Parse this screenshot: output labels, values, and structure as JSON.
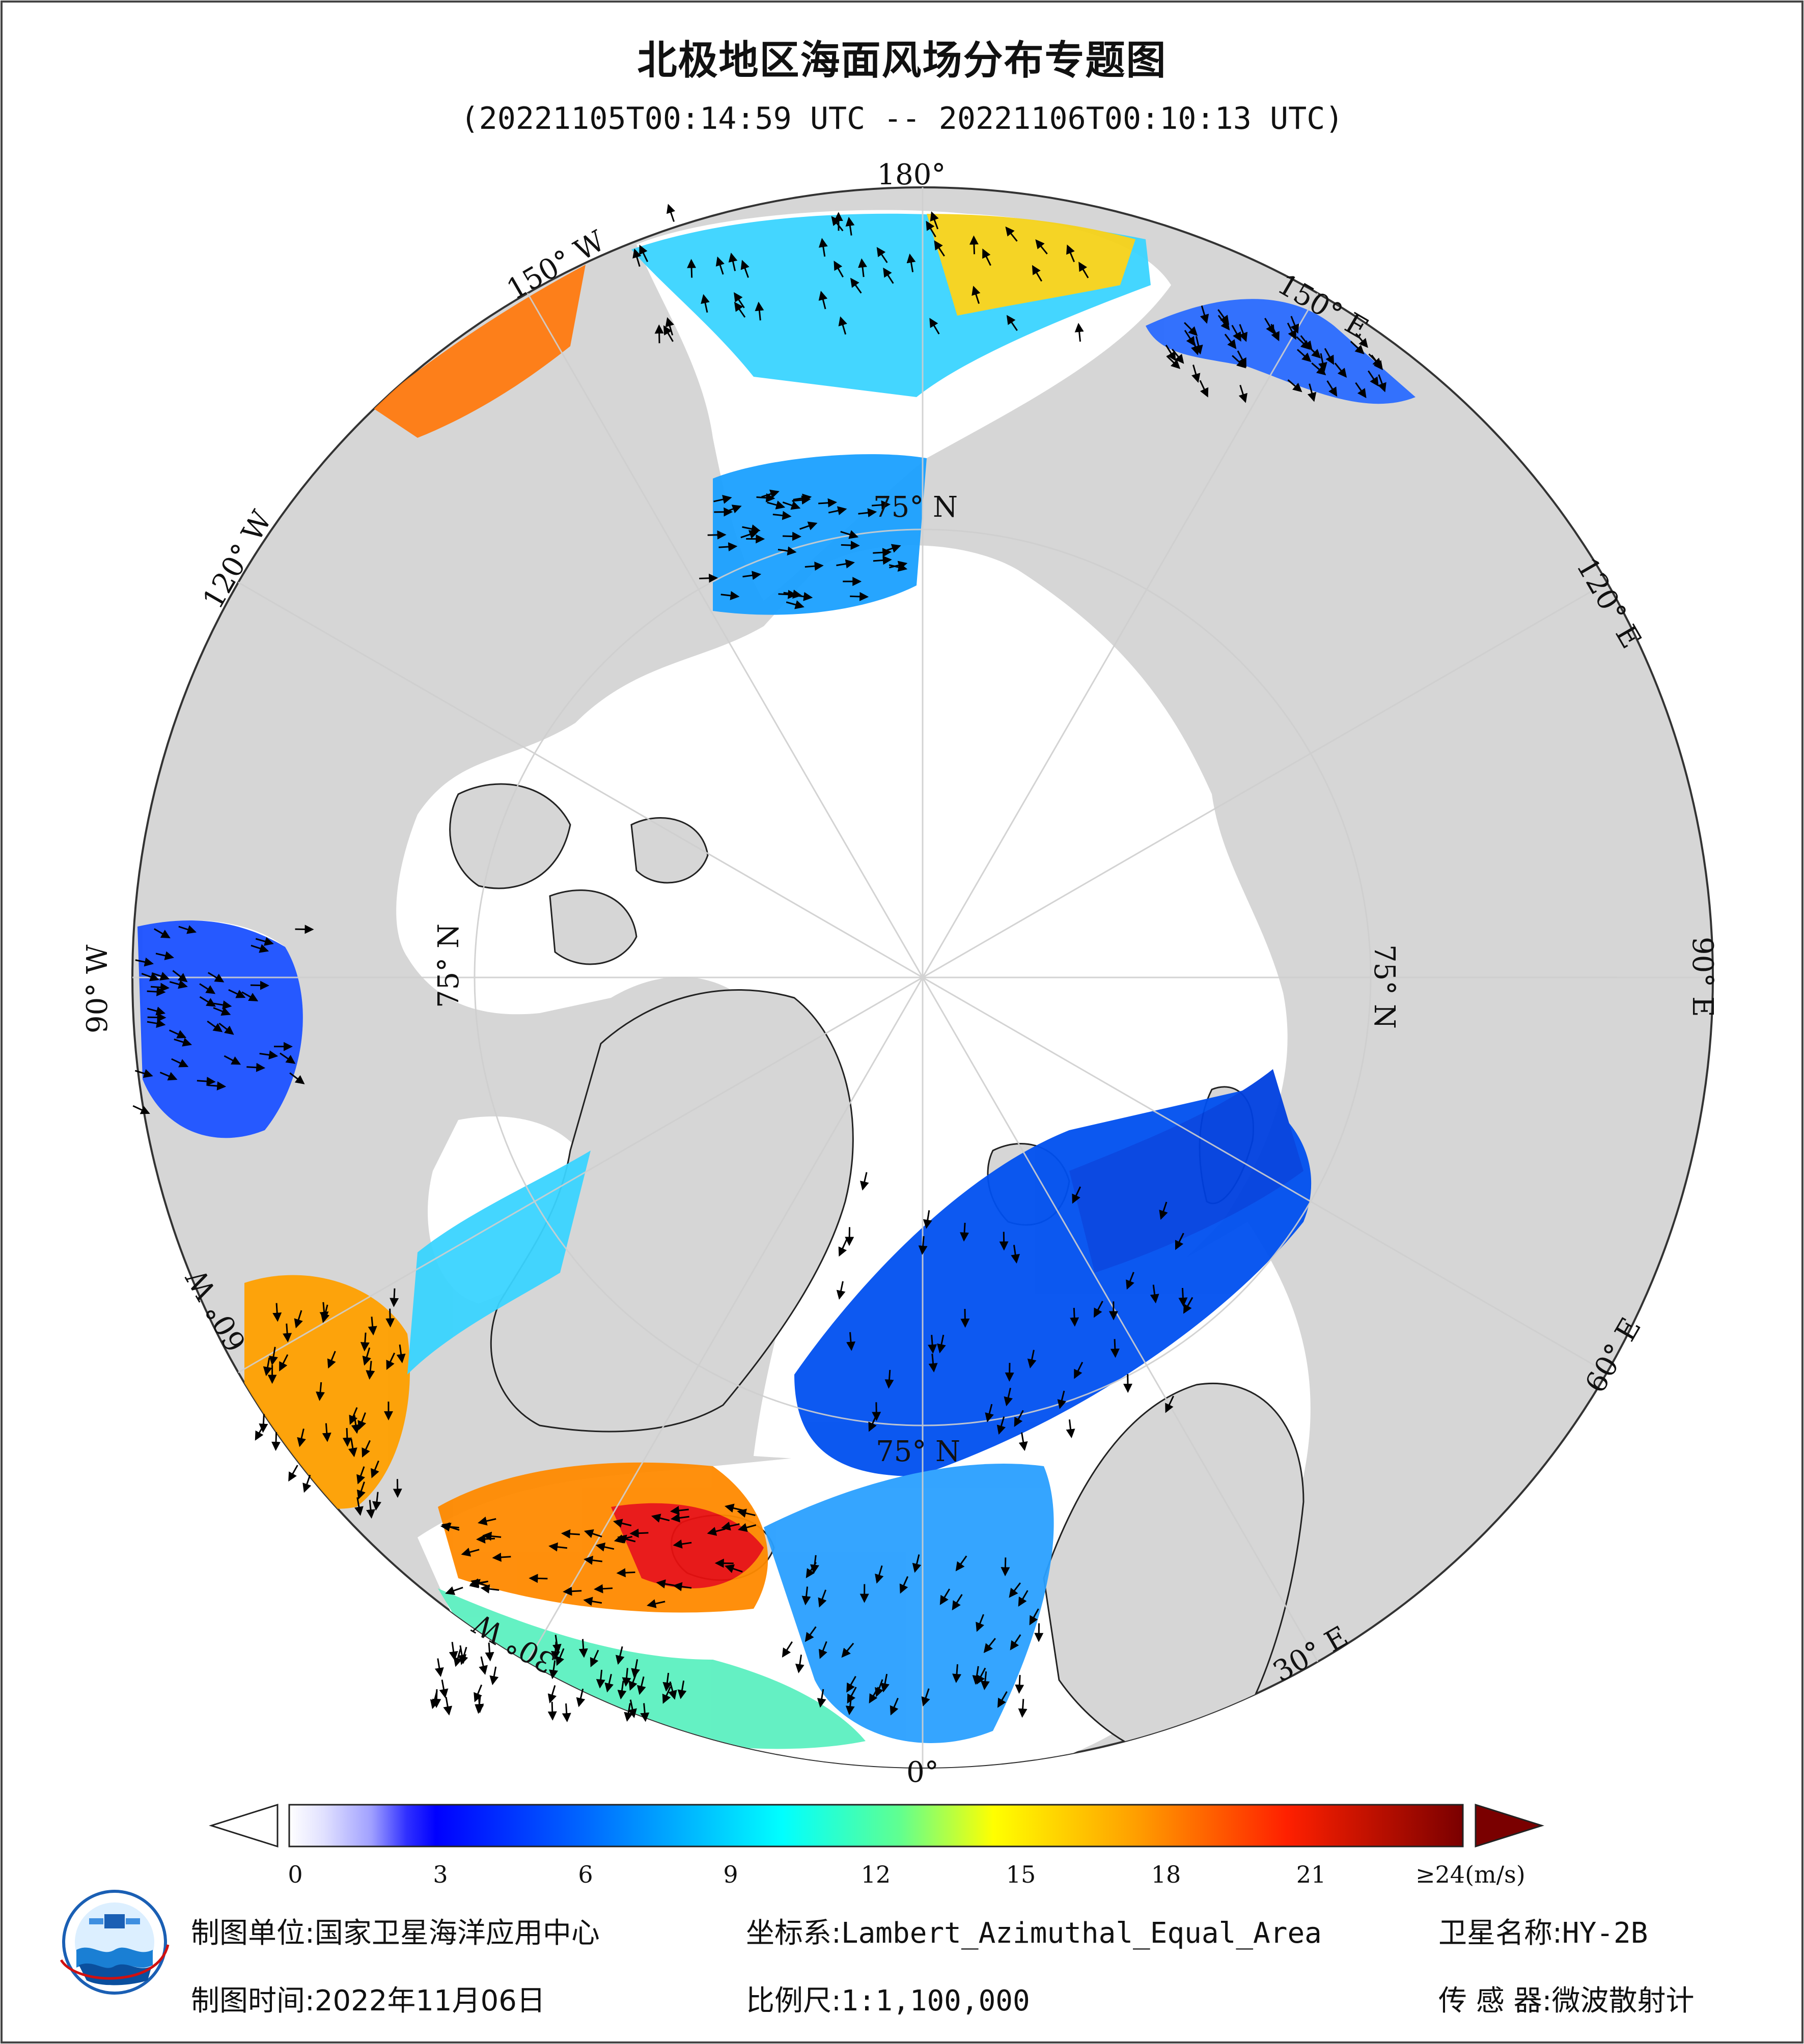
{
  "title": "北极地区海面风场分布专题图",
  "time_range": "(20221105T00:14:59 UTC -- 20221106T00:10:13 UTC)",
  "map": {
    "projection_labels": {
      "lon_180": "180°",
      "lon_150w": "150° W",
      "lon_150e": "150° E",
      "lon_120w": "120° W",
      "lon_120e": "120° E",
      "lon_90w": "90° W",
      "lon_90e": "90° E",
      "lon_60w": "60° W",
      "lon_60e": "60° E",
      "lon_30w": "30° W",
      "lon_30e": "30° E",
      "lon_0": "0°",
      "lat_75_top": "75° N",
      "lat_75_right": "75° N",
      "lat_75_left": "75° N",
      "lat_75_bottom": "75° N"
    },
    "colors": {
      "land": "#d6d6d6",
      "ice": "#ffffff",
      "ocean_background": "#ffffff"
    }
  },
  "colorbar": {
    "ticks": [
      "0",
      "3",
      "6",
      "9",
      "12",
      "15",
      "18",
      "21",
      "≥24(m/s)"
    ],
    "tick_values": [
      0,
      3,
      6,
      9,
      12,
      15,
      18,
      21,
      24
    ],
    "min": 0,
    "max": 24,
    "unit": "m/s",
    "colors": [
      "#ffffff",
      "#c8c8ff",
      "#6060ff",
      "#0000ff",
      "#0060ff",
      "#00b0ff",
      "#00ffff",
      "#60ff9a",
      "#c8ff40",
      "#ffff00",
      "#ffa000",
      "#ff4000",
      "#e00000",
      "#800000"
    ]
  },
  "footer": {
    "producer_label": "制图单位:",
    "producer_value": "国家卫星海洋应用中心",
    "coord_label": "坐标系:",
    "coord_value": "Lambert_Azimuthal_Equal_Area",
    "satellite_label": "卫星名称:",
    "satellite_value": "HY-2B",
    "date_label": "制图时间:",
    "date_value": "2022年11月06日",
    "scale_label": "比例尺:",
    "scale_value": "1:1,100,000",
    "sensor_label": "传 感 器:",
    "sensor_value": "微波散射计"
  }
}
